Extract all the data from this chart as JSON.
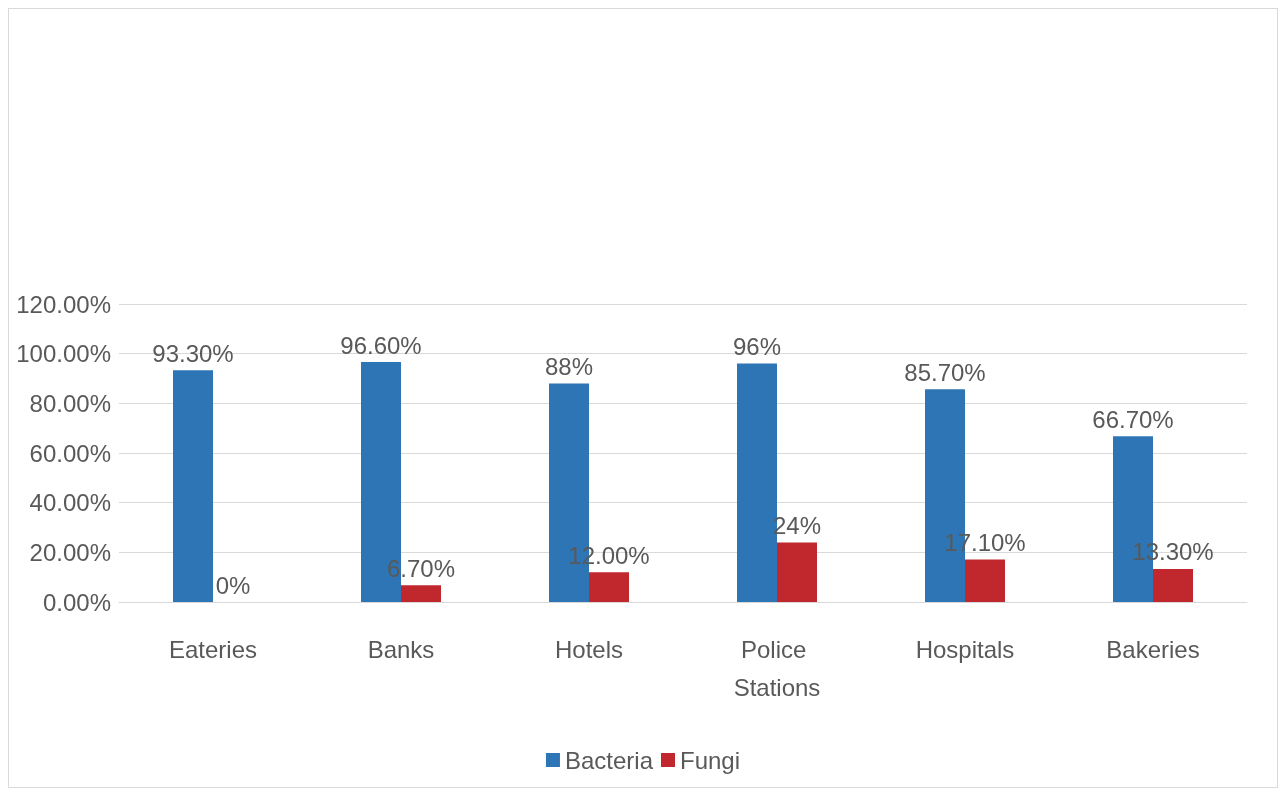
{
  "chart_data": {
    "type": "bar",
    "categories": [
      "Eateries",
      "Banks",
      "Hotels",
      "Police Stations",
      "Hospitals",
      "Bakeries"
    ],
    "series": [
      {
        "name": "Bacteria",
        "color": "#2e75b6",
        "values": [
          93.3,
          96.6,
          88,
          96,
          85.7,
          66.7
        ],
        "value_labels": [
          "93.30%",
          "96.60%",
          "88%",
          "96%",
          "85.70%",
          "66.70%"
        ]
      },
      {
        "name": "Fungi",
        "color": "#c0282d",
        "values": [
          0,
          6.7,
          12,
          24,
          17.1,
          13.3
        ],
        "value_labels": [
          "0%",
          "6.70%",
          "12.00%",
          "24%",
          "17.10%",
          "13.30%"
        ]
      }
    ],
    "ylim": [
      0,
      120
    ],
    "yticks": [
      {
        "value": 0,
        "label": "0.00%"
      },
      {
        "value": 20,
        "label": "20.00%"
      },
      {
        "value": 40,
        "label": "40.00%"
      },
      {
        "value": 60,
        "label": "60.00%"
      },
      {
        "value": 80,
        "label": "80.00%"
      },
      {
        "value": 100,
        "label": "100.00%"
      },
      {
        "value": 120,
        "label": "120.00%"
      }
    ],
    "grid": "y",
    "legend": "bottom"
  }
}
